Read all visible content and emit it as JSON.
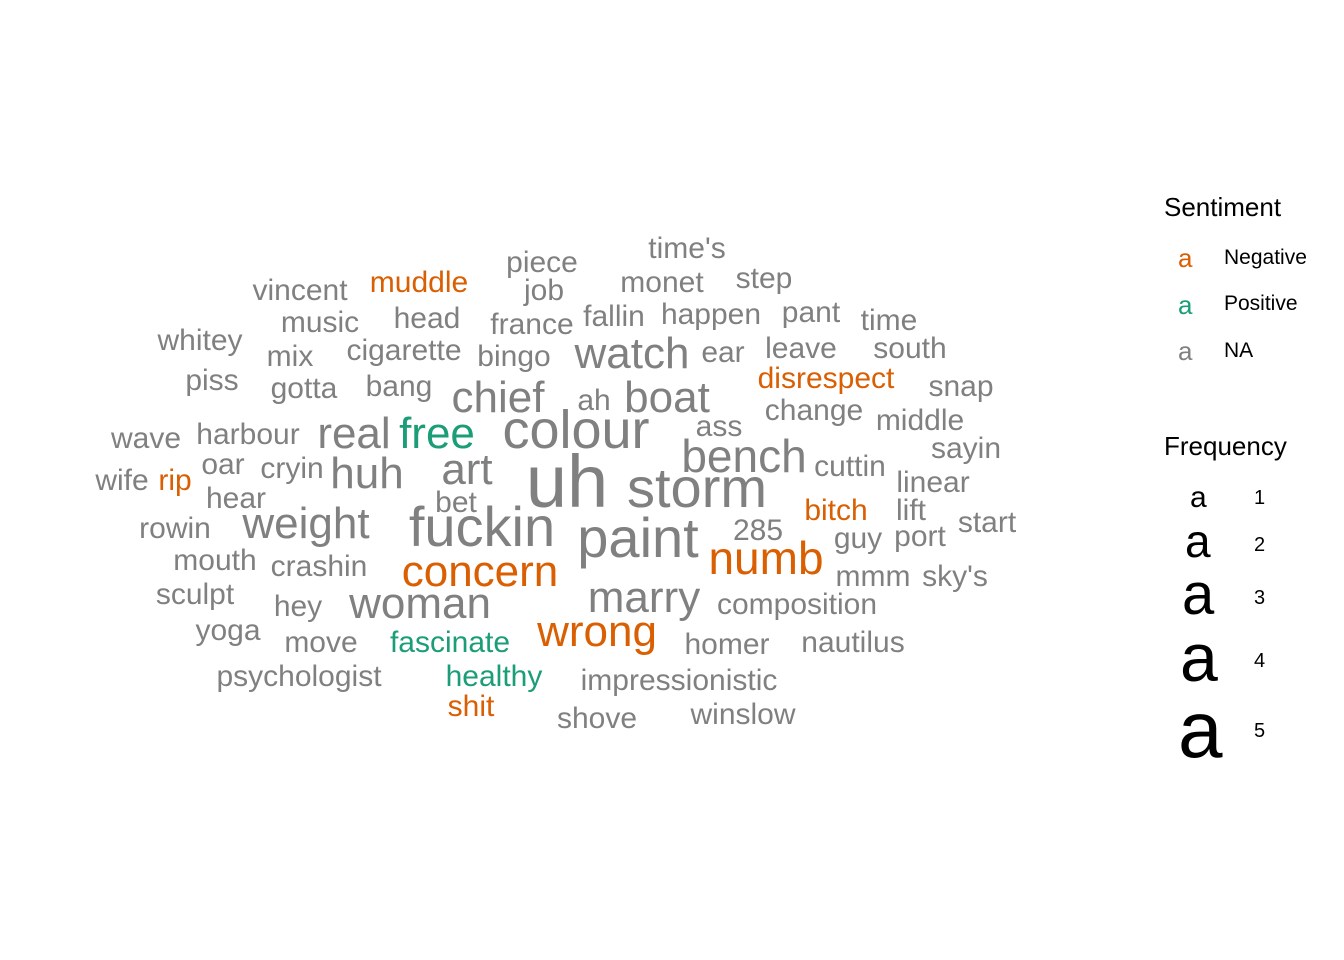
{
  "chart_data": {
    "type": "wordcloud",
    "colors": {
      "Negative": "#D95F02",
      "Positive": "#1B9E77",
      "NA": "#808080"
    },
    "words": [
      {
        "word": "uh",
        "freq": 5,
        "sentiment": "NA"
      },
      {
        "word": "storm",
        "freq": 4,
        "sentiment": "NA"
      },
      {
        "word": "paint",
        "freq": 4,
        "sentiment": "NA"
      },
      {
        "word": "fuckin",
        "freq": 4,
        "sentiment": "NA"
      },
      {
        "word": "colour",
        "freq": 4,
        "sentiment": "NA"
      },
      {
        "word": "bench",
        "freq": 3,
        "sentiment": "NA"
      },
      {
        "word": "numb",
        "freq": 3,
        "sentiment": "Negative"
      },
      {
        "word": "concern",
        "freq": 3,
        "sentiment": "Negative"
      },
      {
        "word": "wrong",
        "freq": 3,
        "sentiment": "Negative"
      },
      {
        "word": "marry",
        "freq": 3,
        "sentiment": "NA"
      },
      {
        "word": "woman",
        "freq": 3,
        "sentiment": "NA"
      },
      {
        "word": "weight",
        "freq": 3,
        "sentiment": "NA"
      },
      {
        "word": "huh",
        "freq": 3,
        "sentiment": "NA"
      },
      {
        "word": "art",
        "freq": 3,
        "sentiment": "NA"
      },
      {
        "word": "real",
        "freq": 3,
        "sentiment": "NA"
      },
      {
        "word": "free",
        "freq": 3,
        "sentiment": "Positive"
      },
      {
        "word": "chief",
        "freq": 3,
        "sentiment": "NA"
      },
      {
        "word": "boat",
        "freq": 3,
        "sentiment": "NA"
      },
      {
        "word": "watch",
        "freq": 3,
        "sentiment": "NA"
      },
      {
        "word": "muddle",
        "freq": 2,
        "sentiment": "Negative"
      },
      {
        "word": "disrespect",
        "freq": 2,
        "sentiment": "Negative"
      },
      {
        "word": "bitch",
        "freq": 2,
        "sentiment": "Negative"
      },
      {
        "word": "rip",
        "freq": 2,
        "sentiment": "Negative"
      },
      {
        "word": "shit",
        "freq": 2,
        "sentiment": "Negative"
      },
      {
        "word": "fascinate",
        "freq": 2,
        "sentiment": "Positive"
      },
      {
        "word": "healthy",
        "freq": 2,
        "sentiment": "Positive"
      },
      {
        "word": "time's",
        "freq": 2,
        "sentiment": "NA"
      },
      {
        "word": "piece",
        "freq": 2,
        "sentiment": "NA"
      },
      {
        "word": "monet",
        "freq": 2,
        "sentiment": "NA"
      },
      {
        "word": "step",
        "freq": 2,
        "sentiment": "NA"
      },
      {
        "word": "vincent",
        "freq": 2,
        "sentiment": "NA"
      },
      {
        "word": "job",
        "freq": 2,
        "sentiment": "NA"
      },
      {
        "word": "music",
        "freq": 2,
        "sentiment": "NA"
      },
      {
        "word": "head",
        "freq": 2,
        "sentiment": "NA"
      },
      {
        "word": "france",
        "freq": 2,
        "sentiment": "NA"
      },
      {
        "word": "fallin",
        "freq": 2,
        "sentiment": "NA"
      },
      {
        "word": "happen",
        "freq": 2,
        "sentiment": "NA"
      },
      {
        "word": "pant",
        "freq": 2,
        "sentiment": "NA"
      },
      {
        "word": "time",
        "freq": 2,
        "sentiment": "NA"
      },
      {
        "word": "whitey",
        "freq": 2,
        "sentiment": "NA"
      },
      {
        "word": "mix",
        "freq": 2,
        "sentiment": "NA"
      },
      {
        "word": "cigarette",
        "freq": 2,
        "sentiment": "NA"
      },
      {
        "word": "bingo",
        "freq": 2,
        "sentiment": "NA"
      },
      {
        "word": "ear",
        "freq": 2,
        "sentiment": "NA"
      },
      {
        "word": "leave",
        "freq": 2,
        "sentiment": "NA"
      },
      {
        "word": "south",
        "freq": 2,
        "sentiment": "NA"
      },
      {
        "word": "piss",
        "freq": 2,
        "sentiment": "NA"
      },
      {
        "word": "gotta",
        "freq": 2,
        "sentiment": "NA"
      },
      {
        "word": "bang",
        "freq": 2,
        "sentiment": "NA"
      },
      {
        "word": "ah",
        "freq": 2,
        "sentiment": "NA"
      },
      {
        "word": "snap",
        "freq": 2,
        "sentiment": "NA"
      },
      {
        "word": "change",
        "freq": 2,
        "sentiment": "NA"
      },
      {
        "word": "middle",
        "freq": 2,
        "sentiment": "NA"
      },
      {
        "word": "wave",
        "freq": 2,
        "sentiment": "NA"
      },
      {
        "word": "harbour",
        "freq": 2,
        "sentiment": "NA"
      },
      {
        "word": "ass",
        "freq": 2,
        "sentiment": "NA"
      },
      {
        "word": "sayin",
        "freq": 2,
        "sentiment": "NA"
      },
      {
        "word": "oar",
        "freq": 2,
        "sentiment": "NA"
      },
      {
        "word": "cryin",
        "freq": 2,
        "sentiment": "NA"
      },
      {
        "word": "cuttin",
        "freq": 2,
        "sentiment": "NA"
      },
      {
        "word": "wife",
        "freq": 2,
        "sentiment": "NA"
      },
      {
        "word": "linear",
        "freq": 2,
        "sentiment": "NA"
      },
      {
        "word": "hear",
        "freq": 2,
        "sentiment": "NA"
      },
      {
        "word": "bet",
        "freq": 2,
        "sentiment": "NA"
      },
      {
        "word": "lift",
        "freq": 2,
        "sentiment": "NA"
      },
      {
        "word": "rowin",
        "freq": 2,
        "sentiment": "NA"
      },
      {
        "word": "285",
        "freq": 2,
        "sentiment": "NA"
      },
      {
        "word": "start",
        "freq": 2,
        "sentiment": "NA"
      },
      {
        "word": "guy",
        "freq": 2,
        "sentiment": "NA"
      },
      {
        "word": "port",
        "freq": 2,
        "sentiment": "NA"
      },
      {
        "word": "mouth",
        "freq": 2,
        "sentiment": "NA"
      },
      {
        "word": "crashin",
        "freq": 2,
        "sentiment": "NA"
      },
      {
        "word": "mmm",
        "freq": 2,
        "sentiment": "NA"
      },
      {
        "word": "sky's",
        "freq": 2,
        "sentiment": "NA"
      },
      {
        "word": "sculpt",
        "freq": 2,
        "sentiment": "NA"
      },
      {
        "word": "hey",
        "freq": 2,
        "sentiment": "NA"
      },
      {
        "word": "composition",
        "freq": 2,
        "sentiment": "NA"
      },
      {
        "word": "yoga",
        "freq": 2,
        "sentiment": "NA"
      },
      {
        "word": "move",
        "freq": 2,
        "sentiment": "NA"
      },
      {
        "word": "homer",
        "freq": 2,
        "sentiment": "NA"
      },
      {
        "word": "nautilus",
        "freq": 2,
        "sentiment": "NA"
      },
      {
        "word": "psychologist",
        "freq": 2,
        "sentiment": "NA"
      },
      {
        "word": "impressionistic",
        "freq": 2,
        "sentiment": "NA"
      },
      {
        "word": "shove",
        "freq": 2,
        "sentiment": "NA"
      },
      {
        "word": "winslow",
        "freq": 2,
        "sentiment": "NA"
      }
    ],
    "legend": {
      "sentiment_title": "Sentiment",
      "sentiment_key_glyph": "a",
      "sentiment_items": [
        {
          "label": "Negative",
          "color": "#D95F02"
        },
        {
          "label": "Positive",
          "color": "#1B9E77"
        },
        {
          "label": "NA",
          "color": "#808080"
        }
      ],
      "frequency_title": "Frequency",
      "frequency_key_glyph": "a",
      "frequency_items": [
        {
          "label": "1",
          "value": 1
        },
        {
          "label": "2",
          "value": 2
        },
        {
          "label": "3",
          "value": 3
        },
        {
          "label": "4",
          "value": 4
        },
        {
          "label": "5",
          "value": 5
        }
      ]
    }
  }
}
